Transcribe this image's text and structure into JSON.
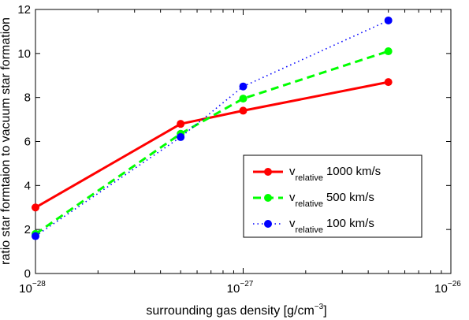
{
  "chart_data": {
    "type": "line",
    "x_scale": "log",
    "xlabel": "surrounding gas density [g/cm",
    "xlabel_sup": "−3",
    "xlabel_end": "]",
    "ylabel": "ratio star formtaion to vacuum star formation",
    "xlim": [
      1e-28,
      1e-26
    ],
    "ylim": [
      0,
      12
    ],
    "x_ticks": [
      {
        "value": 1e-28,
        "base": "10",
        "exp": "−28"
      },
      {
        "value": 1e-27,
        "base": "10",
        "exp": "−27"
      },
      {
        "value": 1e-26,
        "base": "10",
        "exp": "−26"
      }
    ],
    "y_ticks": [
      {
        "value": 0,
        "label": "0"
      },
      {
        "value": 2,
        "label": "2"
      },
      {
        "value": 4,
        "label": "4"
      },
      {
        "value": 6,
        "label": "6"
      },
      {
        "value": 8,
        "label": "8"
      },
      {
        "value": 10,
        "label": "10"
      },
      {
        "value": 12,
        "label": "12"
      }
    ],
    "grid": false,
    "legend_position": "lower-right",
    "x": [
      1e-28,
      5e-28,
      1e-27,
      5e-27
    ],
    "series": [
      {
        "name_main": "v",
        "name_sub": "relative",
        "name_rest": "1000 km/s",
        "color": "#ff0000",
        "dash": "solid",
        "values": [
          3.0,
          6.8,
          7.4,
          8.7
        ]
      },
      {
        "name_main": "v",
        "name_sub": "relative",
        "name_rest": "500 km/s",
        "color": "#00ff00",
        "dash": "dashed",
        "values": [
          1.8,
          6.35,
          7.95,
          10.1
        ]
      },
      {
        "name_main": "v",
        "name_sub": "relative",
        "name_rest": "100 km/s",
        "color": "#0000ff",
        "dash": "dotted",
        "values": [
          1.7,
          6.2,
          8.5,
          11.5
        ]
      }
    ]
  }
}
